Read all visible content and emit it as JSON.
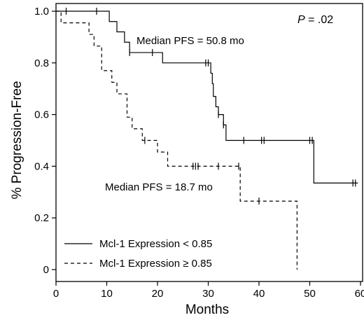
{
  "chart_data": {
    "type": "line",
    "xlabel": "Months",
    "ylabel": "% Progression-Free",
    "xlim": [
      0,
      60
    ],
    "ylim": [
      0,
      1.0
    ],
    "x_ticks": [
      "0",
      "10",
      "20",
      "30",
      "40",
      "50",
      "60"
    ],
    "y_ticks": [
      "0",
      "0.2",
      "0.4",
      "0.6",
      "0.8",
      "1.0"
    ],
    "grid": false,
    "legend_position": "bottom-left",
    "p_value": {
      "prefix": "P",
      "text": " = .02"
    },
    "annotations": [
      {
        "text": "Median PFS = 50.8 mo"
      },
      {
        "text": "Median PFS = 18.7 mo"
      }
    ],
    "series": [
      {
        "name": "Mcl-1 Expression < 0.85",
        "line_style": "solid",
        "steps": [
          [
            0,
            1.0
          ],
          [
            10.5,
            0.96
          ],
          [
            12,
            0.92
          ],
          [
            13.5,
            0.88
          ],
          [
            14.5,
            0.84
          ],
          [
            21,
            0.8
          ],
          [
            30.5,
            0.76
          ],
          [
            30.8,
            0.72
          ],
          [
            31,
            0.67
          ],
          [
            31.5,
            0.63
          ],
          [
            32,
            0.6
          ],
          [
            33,
            0.56
          ],
          [
            33.5,
            0.5
          ],
          [
            50.8,
            0.335
          ],
          [
            59.5,
            0.335
          ]
        ],
        "censored": [
          2,
          8,
          14.5,
          19,
          29.5,
          30,
          32,
          33,
          37,
          40.5,
          41,
          50,
          50.5,
          58.5,
          59
        ]
      },
      {
        "name": "Mcl-1 Expression ≥ 0.85",
        "line_style": "dashed",
        "steps": [
          [
            0,
            1.0
          ],
          [
            1,
            0.955
          ],
          [
            6.5,
            0.91
          ],
          [
            7.5,
            0.865
          ],
          [
            9,
            0.77
          ],
          [
            11,
            0.725
          ],
          [
            12,
            0.68
          ],
          [
            14,
            0.59
          ],
          [
            15,
            0.545
          ],
          [
            17,
            0.5
          ],
          [
            20,
            0.455
          ],
          [
            22,
            0.4
          ],
          [
            36.3,
            0.265
          ],
          [
            47.5,
            0.0
          ]
        ],
        "censored": [
          17.5,
          27,
          27.5,
          28,
          32,
          36,
          40
        ]
      }
    ]
  }
}
